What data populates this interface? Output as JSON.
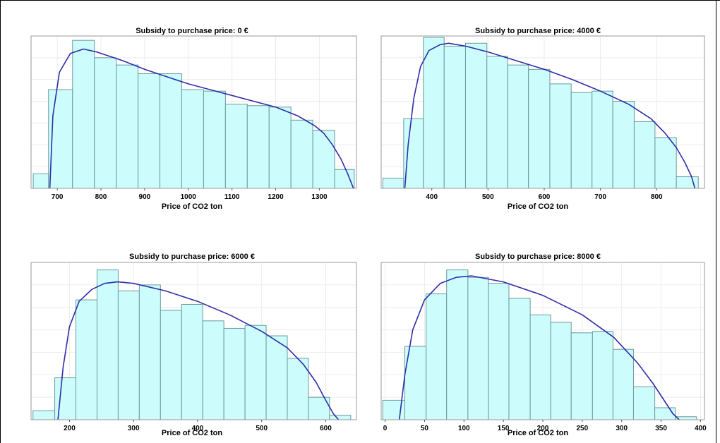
{
  "chart_data": [
    {
      "type": "bar",
      "title": "Subsidy to purchase price: 0 €",
      "xlabel": "Price of CO2 ton",
      "ylabel": "",
      "xlim": [
        640,
        1385
      ],
      "ylim": [
        0,
        105
      ],
      "xticks": [
        700,
        800,
        900,
        1000,
        1100,
        1200,
        1300
      ],
      "grid": true,
      "bins": [
        {
          "x0": 645,
          "x1": 680,
          "value": 10
        },
        {
          "x0": 680,
          "x1": 735,
          "value": 68
        },
        {
          "x0": 735,
          "x1": 785,
          "value": 102
        },
        {
          "x0": 785,
          "x1": 835,
          "value": 90
        },
        {
          "x0": 835,
          "x1": 885,
          "value": 85
        },
        {
          "x0": 885,
          "x1": 935,
          "value": 79
        },
        {
          "x0": 935,
          "x1": 985,
          "value": 79
        },
        {
          "x0": 985,
          "x1": 1035,
          "value": 68
        },
        {
          "x0": 1035,
          "x1": 1085,
          "value": 67
        },
        {
          "x0": 1085,
          "x1": 1135,
          "value": 58
        },
        {
          "x0": 1135,
          "x1": 1185,
          "value": 57
        },
        {
          "x0": 1185,
          "x1": 1235,
          "value": 56
        },
        {
          "x0": 1235,
          "x1": 1285,
          "value": 47
        },
        {
          "x0": 1285,
          "x1": 1335,
          "value": 40
        },
        {
          "x0": 1335,
          "x1": 1380,
          "value": 13
        }
      ],
      "density": [
        [
          683,
          0
        ],
        [
          690,
          50
        ],
        [
          705,
          80
        ],
        [
          730,
          93
        ],
        [
          760,
          96
        ],
        [
          790,
          94
        ],
        [
          850,
          88
        ],
        [
          900,
          82
        ],
        [
          950,
          77
        ],
        [
          1000,
          72
        ],
        [
          1050,
          68
        ],
        [
          1100,
          64
        ],
        [
          1150,
          60
        ],
        [
          1200,
          56
        ],
        [
          1250,
          50
        ],
        [
          1290,
          43
        ],
        [
          1310,
          38
        ],
        [
          1330,
          30
        ],
        [
          1350,
          20
        ],
        [
          1365,
          10
        ],
        [
          1378,
          0
        ]
      ]
    },
    {
      "type": "bar",
      "title": "Subsidy to purchase price: 4000 €",
      "xlabel": "Price of CO2 ton",
      "ylabel": "",
      "xlim": [
        310,
        885
      ],
      "ylim": [
        0,
        105
      ],
      "xticks": [
        400,
        500,
        600,
        700,
        800
      ],
      "grid": true,
      "bins": [
        {
          "x0": 313,
          "x1": 350,
          "value": 7
        },
        {
          "x0": 350,
          "x1": 385,
          "value": 48
        },
        {
          "x0": 385,
          "x1": 422,
          "value": 104
        },
        {
          "x0": 422,
          "x1": 460,
          "value": 98
        },
        {
          "x0": 460,
          "x1": 498,
          "value": 100
        },
        {
          "x0": 498,
          "x1": 535,
          "value": 91
        },
        {
          "x0": 535,
          "x1": 572,
          "value": 85
        },
        {
          "x0": 572,
          "x1": 610,
          "value": 82
        },
        {
          "x0": 610,
          "x1": 648,
          "value": 72
        },
        {
          "x0": 648,
          "x1": 685,
          "value": 66
        },
        {
          "x0": 685,
          "x1": 722,
          "value": 67
        },
        {
          "x0": 722,
          "x1": 760,
          "value": 60
        },
        {
          "x0": 760,
          "x1": 797,
          "value": 46
        },
        {
          "x0": 797,
          "x1": 835,
          "value": 35
        },
        {
          "x0": 835,
          "x1": 874,
          "value": 8
        }
      ],
      "density": [
        [
          352,
          0
        ],
        [
          358,
          30
        ],
        [
          368,
          62
        ],
        [
          380,
          84
        ],
        [
          395,
          95
        ],
        [
          415,
          99
        ],
        [
          430,
          100
        ],
        [
          460,
          98
        ],
        [
          500,
          94
        ],
        [
          550,
          88
        ],
        [
          600,
          82
        ],
        [
          650,
          75
        ],
        [
          700,
          67
        ],
        [
          750,
          58
        ],
        [
          790,
          48
        ],
        [
          815,
          38
        ],
        [
          835,
          28
        ],
        [
          850,
          18
        ],
        [
          862,
          8
        ],
        [
          868,
          0
        ]
      ]
    },
    {
      "type": "bar",
      "title": "Subsidy to purchase price: 6000 €",
      "xlabel": "Price of CO2 ton",
      "ylabel": "",
      "xlim": [
        140,
        648
      ],
      "ylim": [
        0,
        105
      ],
      "xticks": [
        200,
        300,
        400,
        500,
        600
      ],
      "grid": true,
      "bins": [
        {
          "x0": 143,
          "x1": 177,
          "value": 6
        },
        {
          "x0": 177,
          "x1": 210,
          "value": 28
        },
        {
          "x0": 210,
          "x1": 243,
          "value": 80
        },
        {
          "x0": 243,
          "x1": 276,
          "value": 100
        },
        {
          "x0": 276,
          "x1": 309,
          "value": 86
        },
        {
          "x0": 309,
          "x1": 342,
          "value": 90
        },
        {
          "x0": 342,
          "x1": 375,
          "value": 73
        },
        {
          "x0": 375,
          "x1": 408,
          "value": 77
        },
        {
          "x0": 408,
          "x1": 441,
          "value": 66
        },
        {
          "x0": 441,
          "x1": 474,
          "value": 61
        },
        {
          "x0": 474,
          "x1": 507,
          "value": 63
        },
        {
          "x0": 507,
          "x1": 540,
          "value": 56
        },
        {
          "x0": 540,
          "x1": 573,
          "value": 41
        },
        {
          "x0": 573,
          "x1": 606,
          "value": 15
        },
        {
          "x0": 606,
          "x1": 639,
          "value": 3
        }
      ],
      "density": [
        [
          182,
          0
        ],
        [
          190,
          35
        ],
        [
          200,
          62
        ],
        [
          215,
          79
        ],
        [
          235,
          87
        ],
        [
          255,
          91
        ],
        [
          275,
          92
        ],
        [
          300,
          91
        ],
        [
          350,
          86
        ],
        [
          400,
          79
        ],
        [
          450,
          70
        ],
        [
          500,
          59
        ],
        [
          540,
          48
        ],
        [
          565,
          37
        ],
        [
          585,
          25
        ],
        [
          600,
          13
        ],
        [
          612,
          4
        ],
        [
          620,
          0
        ]
      ]
    },
    {
      "type": "bar",
      "title": "Subsidy to purchase price: 8000 €",
      "xlabel": "Price of CO2 ton",
      "ylabel": "",
      "xlim": [
        -5,
        405
      ],
      "ylim": [
        0,
        105
      ],
      "xticks": [
        0,
        50,
        100,
        150,
        200,
        250,
        300,
        350,
        400
      ],
      "grid": true,
      "bins": [
        {
          "x0": -3,
          "x1": 25,
          "value": 13
        },
        {
          "x0": 25,
          "x1": 52,
          "value": 49
        },
        {
          "x0": 52,
          "x1": 78,
          "value": 84
        },
        {
          "x0": 78,
          "x1": 105,
          "value": 100
        },
        {
          "x0": 105,
          "x1": 131,
          "value": 95
        },
        {
          "x0": 131,
          "x1": 157,
          "value": 91
        },
        {
          "x0": 157,
          "x1": 184,
          "value": 81
        },
        {
          "x0": 184,
          "x1": 210,
          "value": 70
        },
        {
          "x0": 210,
          "x1": 236,
          "value": 65
        },
        {
          "x0": 236,
          "x1": 263,
          "value": 58
        },
        {
          "x0": 263,
          "x1": 289,
          "value": 59
        },
        {
          "x0": 289,
          "x1": 315,
          "value": 47
        },
        {
          "x0": 315,
          "x1": 342,
          "value": 22
        },
        {
          "x0": 342,
          "x1": 368,
          "value": 8
        },
        {
          "x0": 368,
          "x1": 395,
          "value": 2
        }
      ],
      "density": [
        [
          18,
          0
        ],
        [
          25,
          30
        ],
        [
          35,
          60
        ],
        [
          50,
          80
        ],
        [
          70,
          91
        ],
        [
          90,
          95
        ],
        [
          110,
          96
        ],
        [
          150,
          92
        ],
        [
          200,
          83
        ],
        [
          250,
          70
        ],
        [
          290,
          55
        ],
        [
          320,
          38
        ],
        [
          340,
          24
        ],
        [
          355,
          12
        ],
        [
          365,
          4
        ],
        [
          373,
          0
        ]
      ]
    }
  ],
  "colors": {
    "bar_fill": "#ccfcfc",
    "bar_stroke": "#6c9a9c",
    "density_line": "#2e2ea8",
    "grid": "#ececec",
    "axis": "#9a9a9a"
  }
}
